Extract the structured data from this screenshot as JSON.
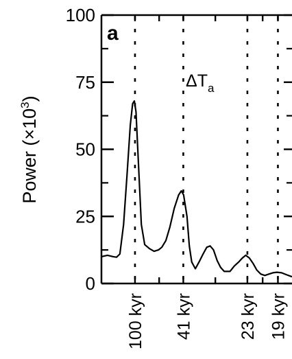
{
  "chart_data": {
    "type": "line",
    "panel_label": "a",
    "series_label": "ΔT",
    "series_label_sub": "a",
    "xlabel": "",
    "ylabel": "Power (×10³)",
    "ylabel_main": "Power (×10",
    "ylabel_sup": "3",
    "ylabel_close": ")",
    "ylim": [
      0,
      100
    ],
    "yticks": [
      0,
      25,
      50,
      75,
      100
    ],
    "ytick_labels": [
      "0",
      "25",
      "50",
      "75",
      "100"
    ],
    "xlim": [
      0,
      0.0568
    ],
    "x_unit": "frequency (1/kyr)",
    "grid": false,
    "reference_lines": [
      {
        "label": "100 kyr",
        "frequency": 0.01
      },
      {
        "label": "41 kyr",
        "frequency": 0.0244
      },
      {
        "label": "23 kyr",
        "frequency": 0.0435
      },
      {
        "label": "19 kyr",
        "frequency": 0.0526
      }
    ],
    "series": [
      {
        "points": [
          [
            0.0,
            10
          ],
          [
            0.0018,
            10.5
          ],
          [
            0.0035,
            10
          ],
          [
            0.0045,
            9.8
          ],
          [
            0.0055,
            11
          ],
          [
            0.0066,
            22
          ],
          [
            0.0076,
            40
          ],
          [
            0.0086,
            59
          ],
          [
            0.0093,
            67
          ],
          [
            0.0098,
            68
          ],
          [
            0.0103,
            64
          ],
          [
            0.0111,
            43
          ],
          [
            0.0119,
            22
          ],
          [
            0.0129,
            14.5
          ],
          [
            0.0143,
            13
          ],
          [
            0.0157,
            12
          ],
          [
            0.017,
            12.5
          ],
          [
            0.018,
            13.5
          ],
          [
            0.0192,
            16
          ],
          [
            0.0204,
            21
          ],
          [
            0.0217,
            28
          ],
          [
            0.023,
            33
          ],
          [
            0.0238,
            34.5
          ],
          [
            0.0245,
            33
          ],
          [
            0.0255,
            25
          ],
          [
            0.0262,
            14
          ],
          [
            0.0269,
            8
          ],
          [
            0.028,
            5.5
          ],
          [
            0.0291,
            8
          ],
          [
            0.0303,
            11
          ],
          [
            0.0314,
            13.5
          ],
          [
            0.0324,
            14
          ],
          [
            0.0334,
            12.5
          ],
          [
            0.0345,
            8.5
          ],
          [
            0.0355,
            6
          ],
          [
            0.0366,
            4.5
          ],
          [
            0.0383,
            4.5
          ],
          [
            0.0396,
            6.5
          ],
          [
            0.0409,
            8
          ],
          [
            0.042,
            9.5
          ],
          [
            0.043,
            10.5
          ],
          [
            0.0441,
            9.5
          ],
          [
            0.0452,
            7.5
          ],
          [
            0.0463,
            5
          ],
          [
            0.0475,
            3.5
          ],
          [
            0.0487,
            3
          ],
          [
            0.0499,
            3.5
          ],
          [
            0.0511,
            4
          ],
          [
            0.0523,
            4.2
          ],
          [
            0.0537,
            4
          ],
          [
            0.0551,
            3.3
          ],
          [
            0.0568,
            2.5
          ]
        ]
      }
    ]
  }
}
